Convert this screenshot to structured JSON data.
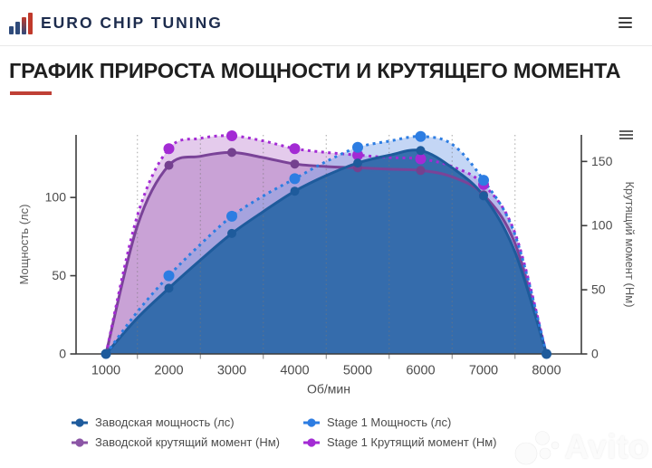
{
  "header": {
    "brand": "EURO CHIP TUNING"
  },
  "title": {
    "text": "ГРАФИК ПРИРОСТА МОЩНОСТИ И КРУТЯЩЕГО МОМЕНТА"
  },
  "accent_color": "#bf4036",
  "brand_color": "#1d2c4d",
  "watermark": {
    "text": "Avito"
  },
  "chart_data": {
    "type": "line",
    "x": [
      1000,
      1500,
      2000,
      2500,
      3000,
      3500,
      4000,
      4500,
      5000,
      5500,
      6000,
      6500,
      7000,
      7500,
      8000
    ],
    "series": [
      {
        "name": "Заводская мощность (лс)",
        "axis": "left",
        "style": "solid",
        "color": "#1e5b9c",
        "fill": "rgba(44,103,168,0.93)",
        "marker_color": "#1e5b9c",
        "values": [
          0,
          23,
          42,
          60,
          77,
          91,
          104,
          114,
          122,
          127,
          130,
          119,
          101,
          65,
          0
        ]
      },
      {
        "name": "Stage 1 Мощность (лс)",
        "axis": "left",
        "style": "dotted",
        "color": "#2d7de2",
        "fill": "rgba(125,165,232,0.45)",
        "marker_color": "#2d7de2",
        "values": [
          0,
          27,
          50,
          70,
          88,
          101,
          112,
          123,
          132,
          136,
          139,
          134,
          111,
          76,
          0
        ]
      },
      {
        "name": "Заводской крутящий момент (Нм)",
        "axis": "right",
        "style": "solid",
        "color": "#7a4398",
        "fill": "#c9a2d6",
        "marker_color": "#74418f",
        "values": [
          0,
          100,
          147,
          154,
          157,
          153,
          148,
          146,
          145,
          144,
          143,
          138,
          124,
          86,
          0
        ]
      },
      {
        "name": "Stage 1 Крутящий момент (Нм)",
        "axis": "right",
        "style": "dotted",
        "color": "#a32bd4",
        "fill": "#e4cbec",
        "marker_color": "#a32bd4",
        "values": [
          0,
          108,
          160,
          168,
          170,
          166,
          160,
          157,
          155,
          153,
          152,
          146,
          132,
          94,
          0
        ]
      }
    ],
    "marker_x": [
      2000,
      3000,
      4000,
      5000,
      6000,
      7000
    ],
    "endpoint_marker_x": [
      1000,
      8000
    ],
    "grid_x": [
      1500,
      2500,
      3500,
      4500,
      5500,
      6500,
      7500
    ],
    "x_tick_labels": [
      "1000",
      "2000",
      "3000",
      "4000",
      "5000",
      "6000",
      "7000",
      "8000"
    ],
    "x_tick_values": [
      1000,
      2000,
      3000,
      4000,
      5000,
      6000,
      7000,
      8000
    ],
    "left_tick_labels": [
      "0",
      "50",
      "100"
    ],
    "left_tick_values": [
      0,
      50,
      100
    ],
    "right_tick_labels": [
      "0",
      "50",
      "100",
      "150"
    ],
    "right_tick_values": [
      0,
      50,
      100,
      150
    ],
    "xlabel": "Об/мин",
    "ylabel_left": "Мощность (лс)",
    "ylabel_right": "Крутящий момент (Нм)",
    "left_range": [
      0,
      140
    ],
    "right_range": [
      0,
      170
    ],
    "x_range": [
      1000,
      8000
    ],
    "grid": "vertical-dotted",
    "legend_position": "bottom"
  },
  "legend": {
    "items": [
      {
        "label": "Заводская мощность (лс)",
        "color": "#1e5b9c"
      },
      {
        "label": "Stage 1 Мощность (лс)",
        "color": "#2d7de2"
      },
      {
        "label": "Заводской крутящий момент (Нм)",
        "color": "#8b55a5"
      },
      {
        "label": "Stage 1 Крутящий момент (Нм)",
        "color": "#a32bd4"
      }
    ]
  }
}
